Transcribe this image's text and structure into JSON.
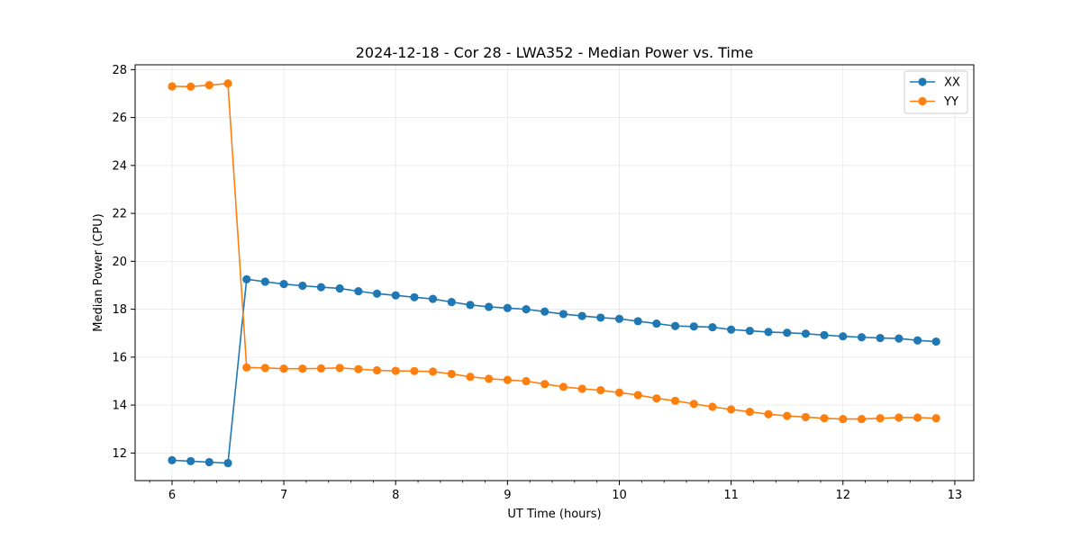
{
  "chart_data": {
    "type": "line",
    "title": "2024-12-18 - Cor 28 - LWA352 - Median Power vs. Time",
    "xlabel": "UT Time (hours)",
    "ylabel": "Median Power (CPU)",
    "xlim": [
      5.67,
      13.17
    ],
    "ylim": [
      10.85,
      28.2
    ],
    "xticks": [
      6,
      7,
      8,
      9,
      10,
      11,
      12,
      13
    ],
    "yticks": [
      12,
      14,
      16,
      18,
      20,
      22,
      24,
      26,
      28
    ],
    "xminor_step": 0.2,
    "grid": true,
    "legend_position": "top-right",
    "x": [
      6.0,
      6.167,
      6.333,
      6.5,
      6.667,
      6.833,
      7.0,
      7.167,
      7.333,
      7.5,
      7.667,
      7.833,
      8.0,
      8.167,
      8.333,
      8.5,
      8.667,
      8.833,
      9.0,
      9.167,
      9.333,
      9.5,
      9.667,
      9.833,
      10.0,
      10.167,
      10.333,
      10.5,
      10.667,
      10.833,
      11.0,
      11.167,
      11.333,
      11.5,
      11.667,
      11.833,
      12.0,
      12.167,
      12.333,
      12.5,
      12.667,
      12.833
    ],
    "series": [
      {
        "name": "XX",
        "color": "#1f77b4",
        "values": [
          11.7,
          11.66,
          11.62,
          11.58,
          19.25,
          19.15,
          19.05,
          18.98,
          18.92,
          18.87,
          18.75,
          18.65,
          18.58,
          18.5,
          18.43,
          18.3,
          18.18,
          18.1,
          18.05,
          18.0,
          17.9,
          17.8,
          17.72,
          17.65,
          17.6,
          17.5,
          17.4,
          17.3,
          17.28,
          17.25,
          17.15,
          17.1,
          17.05,
          17.02,
          16.98,
          16.92,
          16.87,
          16.83,
          16.8,
          16.78,
          16.7,
          16.65
        ]
      },
      {
        "name": "YY",
        "color": "#ff7f0e",
        "values": [
          27.3,
          27.29,
          27.35,
          27.42,
          15.57,
          15.55,
          15.52,
          15.52,
          15.53,
          15.55,
          15.5,
          15.45,
          15.43,
          15.42,
          15.4,
          15.3,
          15.18,
          15.1,
          15.05,
          15.0,
          14.88,
          14.76,
          14.68,
          14.62,
          14.52,
          14.42,
          14.28,
          14.18,
          14.05,
          13.93,
          13.82,
          13.72,
          13.62,
          13.55,
          13.5,
          13.45,
          13.42,
          13.42,
          13.45,
          13.48,
          13.48,
          13.45
        ]
      }
    ]
  }
}
